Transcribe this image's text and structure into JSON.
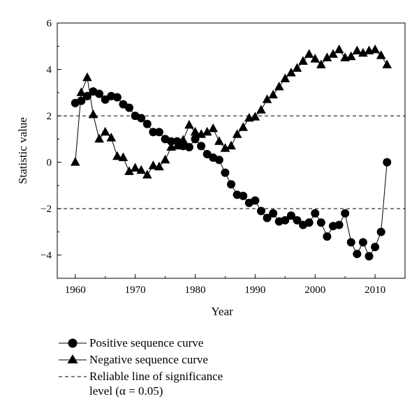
{
  "chart_data": {
    "type": "line",
    "xlabel": "Year",
    "ylabel": "Statistic value",
    "xlim": [
      1957,
      2015
    ],
    "ylim": [
      -5,
      6
    ],
    "x_ticks": [
      1960,
      1970,
      1980,
      1990,
      2000,
      2010
    ],
    "y_ticks": [
      6,
      4,
      2,
      0,
      -2,
      -4
    ],
    "x": [
      1960,
      1961,
      1962,
      1963,
      1964,
      1965,
      1966,
      1967,
      1968,
      1969,
      1970,
      1971,
      1972,
      1973,
      1974,
      1975,
      1976,
      1977,
      1978,
      1979,
      1980,
      1981,
      1982,
      1983,
      1984,
      1985,
      1986,
      1987,
      1988,
      1989,
      1990,
      1991,
      1992,
      1993,
      1994,
      1995,
      1996,
      1997,
      1998,
      1999,
      2000,
      2001,
      2002,
      2003,
      2004,
      2005,
      2006,
      2007,
      2008,
      2009,
      2010,
      2011,
      2012
    ],
    "series": [
      {
        "name": "Positive sequence curve",
        "marker": "circle",
        "values": [
          2.55,
          2.65,
          2.85,
          3.05,
          2.95,
          2.7,
          2.85,
          2.8,
          2.5,
          2.35,
          2.0,
          1.9,
          1.65,
          1.3,
          1.3,
          1.0,
          0.9,
          0.9,
          0.7,
          0.65,
          1.0,
          0.7,
          0.35,
          0.2,
          0.1,
          -0.45,
          -0.95,
          -1.4,
          -1.45,
          -1.75,
          -1.65,
          -2.1,
          -2.4,
          -2.2,
          -2.55,
          -2.5,
          -2.3,
          -2.5,
          -2.7,
          -2.6,
          -2.2,
          -2.6,
          -3.2,
          -2.75,
          -2.7,
          -2.2,
          -3.45,
          -3.95,
          -3.45,
          -4.05,
          -3.65,
          -3.0,
          0.0
        ]
      },
      {
        "name": "Negative sequence curve",
        "marker": "triangle",
        "values": [
          0.0,
          3.0,
          3.65,
          2.05,
          1.0,
          1.3,
          1.05,
          0.25,
          0.2,
          -0.4,
          -0.25,
          -0.35,
          -0.55,
          -0.15,
          -0.2,
          0.1,
          0.65,
          0.7,
          0.95,
          1.6,
          1.3,
          1.2,
          1.3,
          1.45,
          0.9,
          0.6,
          0.7,
          1.2,
          1.5,
          1.9,
          1.95,
          2.25,
          2.7,
          2.9,
          3.25,
          3.6,
          3.85,
          4.05,
          4.35,
          4.65,
          4.45,
          4.2,
          4.5,
          4.65,
          4.85,
          4.5,
          4.55,
          4.8,
          4.7,
          4.8,
          4.85,
          4.6,
          4.2
        ]
      }
    ],
    "reference_lines": [
      {
        "y": 2,
        "style": "dashed"
      },
      {
        "y": -2,
        "style": "dashed"
      }
    ],
    "reference_label": "Reliable line of significance level (α = 0.05)",
    "grid": false,
    "legend_position": "below"
  },
  "legend": {
    "positive": "Positive sequence curve",
    "negative": "Negative sequence curve",
    "reference_line1": "Reliable line of significance",
    "reference_line2": "level (α = 0.05)"
  }
}
